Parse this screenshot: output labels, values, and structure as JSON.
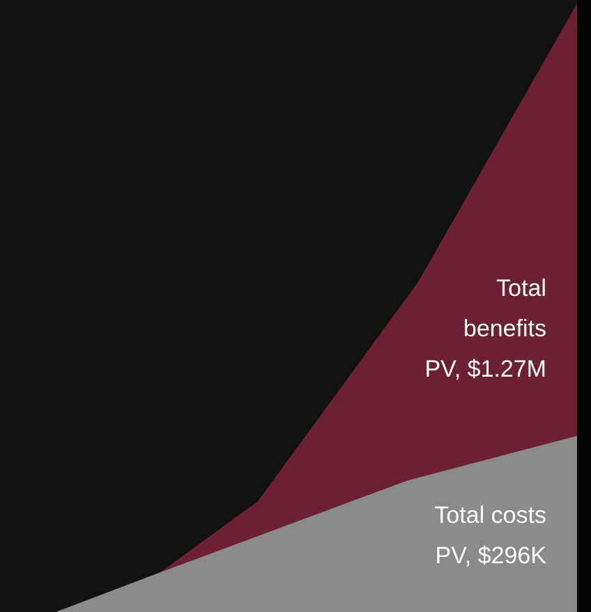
{
  "annotations": {
    "benefits": [
      "Total",
      "benefits",
      "PV, $1.27M"
    ],
    "costs": [
      "Total costs",
      "PV, $296K"
    ]
  }
}
